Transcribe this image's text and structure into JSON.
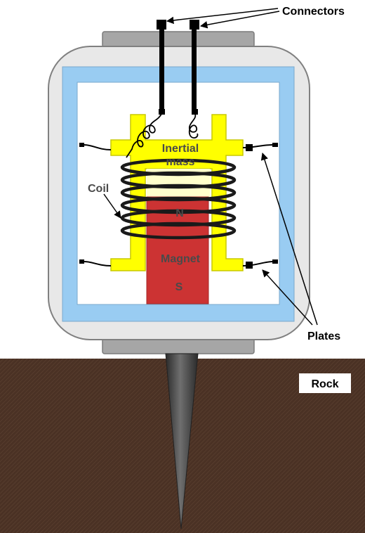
{
  "labels": {
    "connectors": "Connectors",
    "inertial_mass_line1": "Inertial",
    "inertial_mass_line2": "mass",
    "coil": "Coil",
    "magnet_north": "N",
    "magnet": "Magnet",
    "magnet_south": "S",
    "plates": "Plates",
    "rock": "Rock"
  },
  "colors": {
    "rock": "#4a3124",
    "housing_fill": "#e8e8e8",
    "housing_stroke": "#808080",
    "cap": "#a6a6a6",
    "inner_frame": "#99ccf2",
    "inertial_mass": "#ffff00",
    "magnet": "#cc3333",
    "magnet_top": "#ffffcc",
    "coil": "#1a1a1a",
    "spike": "#3a3a3a"
  }
}
